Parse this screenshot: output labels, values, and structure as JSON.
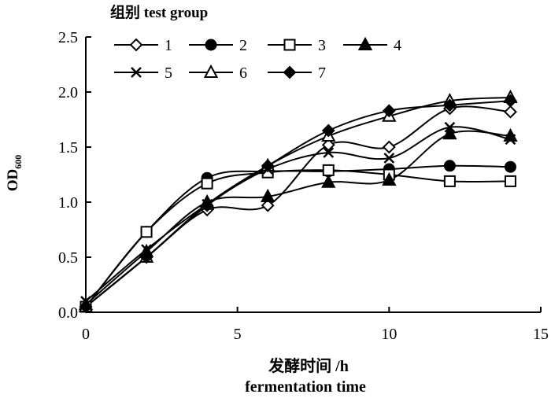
{
  "chart_data": {
    "type": "line",
    "legend_title": "组别 test group",
    "xlabel": "发酵时间 /h",
    "xlabel_en": "fermentation time",
    "ylabel": "OD",
    "ylabel_sub": "600",
    "xlim": [
      0,
      15
    ],
    "ylim": [
      0,
      2.5
    ],
    "xticks": [
      0,
      5,
      10,
      15
    ],
    "xtick_labels": [
      "0",
      "5",
      "10",
      "15"
    ],
    "yticks": [
      0,
      0.5,
      1.0,
      1.5,
      2.0,
      2.5
    ],
    "ytick_labels": [
      "0.0",
      "0.5",
      "1.0",
      "1.5",
      "2.0",
      "2.5"
    ],
    "grid": false,
    "legend_position": "top-left",
    "x": [
      0,
      2,
      4,
      6,
      8,
      10,
      12,
      14
    ],
    "series": [
      {
        "name": "1",
        "marker": "diamond-open",
        "values": [
          0.05,
          0.5,
          0.93,
          0.97,
          1.52,
          1.5,
          1.85,
          1.82
        ]
      },
      {
        "name": "2",
        "marker": "circle-filled",
        "values": [
          0.05,
          0.73,
          1.22,
          1.28,
          1.28,
          1.3,
          1.33,
          1.32
        ]
      },
      {
        "name": "3",
        "marker": "square-open",
        "values": [
          0.05,
          0.73,
          1.17,
          1.27,
          1.29,
          1.25,
          1.19,
          1.19
        ]
      },
      {
        "name": "4",
        "marker": "triangle-filled",
        "values": [
          0.07,
          0.55,
          1.0,
          1.05,
          1.18,
          1.2,
          1.62,
          1.6
        ]
      },
      {
        "name": "5",
        "marker": "x",
        "values": [
          0.1,
          0.57,
          0.98,
          1.3,
          1.45,
          1.4,
          1.68,
          1.57
        ]
      },
      {
        "name": "6",
        "marker": "triangle-open",
        "values": [
          0.05,
          0.5,
          0.98,
          1.33,
          1.6,
          1.78,
          1.92,
          1.95
        ]
      },
      {
        "name": "7",
        "marker": "diamond-filled",
        "values": [
          0.05,
          0.5,
          0.97,
          1.33,
          1.65,
          1.83,
          1.88,
          1.92
        ]
      }
    ]
  }
}
